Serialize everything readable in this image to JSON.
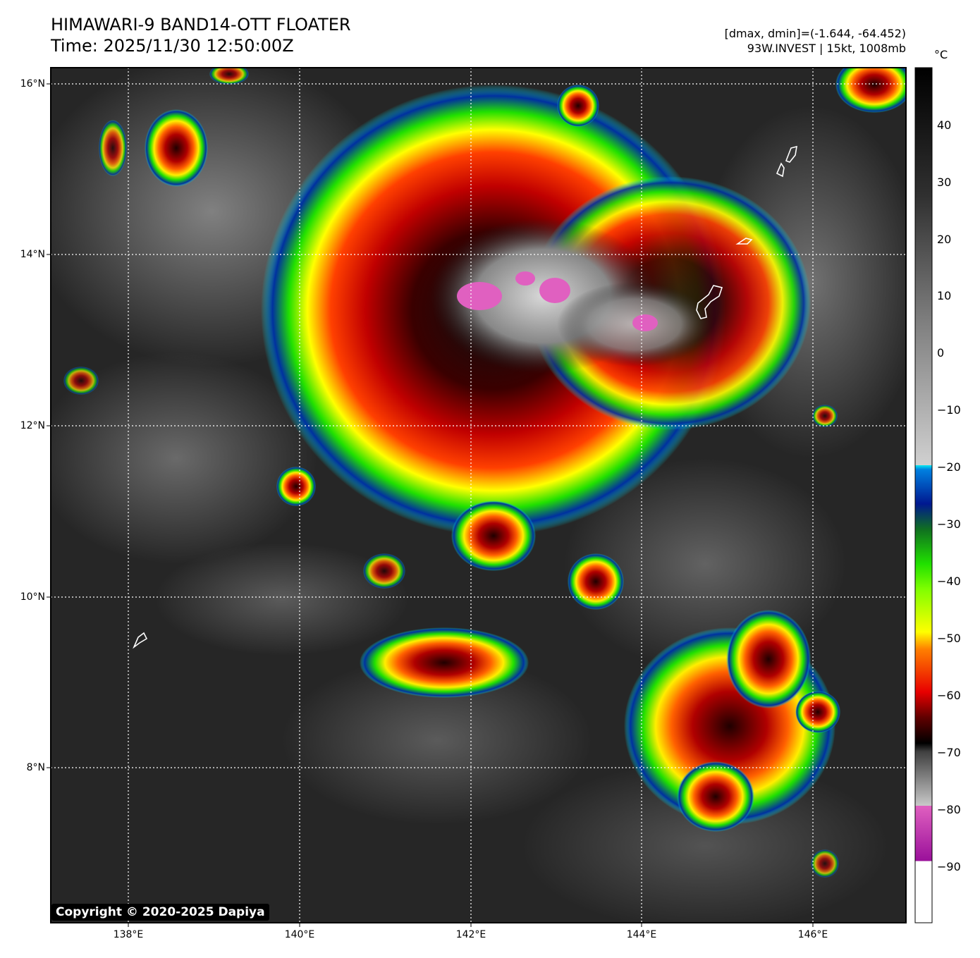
{
  "header": {
    "title_line1": "HIMAWARI-9 BAND14-OTT FLOATER",
    "title_line2": "Time: 2025/11/30 12:50:00Z",
    "meta_line1": "[dmax, dmin]=(-1.644, -64.452)",
    "meta_line2": "93W.INVEST | 15kt, 1008mb"
  },
  "map": {
    "lat_labels": [
      "16°N",
      "14°N",
      "12°N",
      "10°N",
      "8°N"
    ],
    "lon_labels": [
      "138°E",
      "140°E",
      "142°E",
      "144°E",
      "146°E"
    ],
    "copyright": "Copyright © 2020-2025 Dapiya"
  },
  "colorbar": {
    "unit": "°C",
    "ticks": [
      "40",
      "30",
      "20",
      "10",
      "0",
      "−10",
      "−20",
      "−30",
      "−40",
      "−50",
      "−60",
      "−70",
      "−80",
      "−90"
    ],
    "colors": {
      "pink": "#e060c0",
      "magenta": "#9a109a",
      "cyan": "#00e8f0",
      "blue": "#001890",
      "green": "#20e000",
      "yellow": "#ffff00",
      "red": "#e80000",
      "dark": "#101010"
    }
  }
}
